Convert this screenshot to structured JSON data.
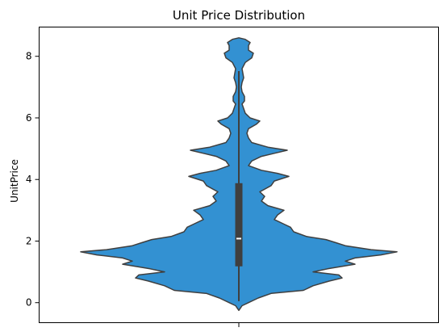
{
  "chart_data": {
    "type": "violin",
    "title": "Unit Price Distribution",
    "xlabel": "",
    "ylabel": "UnitPrice",
    "ylim": [
      -0.65,
      8.95
    ],
    "yticks": [
      0,
      2,
      4,
      6,
      8
    ],
    "grid": false,
    "legend": "none",
    "color": "#3391d2",
    "edge_color": "#3f3f3f",
    "violin": {
      "profile": [
        [
          -0.25,
          0.0
        ],
        [
          -0.1,
          0.02
        ],
        [
          0.0,
          0.06
        ],
        [
          0.15,
          0.12
        ],
        [
          0.3,
          0.2
        ],
        [
          0.4,
          0.4
        ],
        [
          0.55,
          0.46
        ],
        [
          0.7,
          0.56
        ],
        [
          0.8,
          0.64
        ],
        [
          0.9,
          0.62
        ],
        [
          1.0,
          0.46
        ],
        [
          1.1,
          0.55
        ],
        [
          1.25,
          0.72
        ],
        [
          1.35,
          0.66
        ],
        [
          1.45,
          0.72
        ],
        [
          1.55,
          0.88
        ],
        [
          1.65,
          0.98
        ],
        [
          1.72,
          0.82
        ],
        [
          1.85,
          0.66
        ],
        [
          1.95,
          0.6
        ],
        [
          2.05,
          0.54
        ],
        [
          2.15,
          0.42
        ],
        [
          2.3,
          0.34
        ],
        [
          2.45,
          0.32
        ],
        [
          2.55,
          0.28
        ],
        [
          2.7,
          0.22
        ],
        [
          2.85,
          0.24
        ],
        [
          3.0,
          0.28
        ],
        [
          3.15,
          0.18
        ],
        [
          3.3,
          0.14
        ],
        [
          3.45,
          0.16
        ],
        [
          3.6,
          0.13
        ],
        [
          3.8,
          0.2
        ],
        [
          3.95,
          0.22
        ],
        [
          4.1,
          0.31
        ],
        [
          4.2,
          0.24
        ],
        [
          4.3,
          0.14
        ],
        [
          4.45,
          0.06
        ],
        [
          4.6,
          0.08
        ],
        [
          4.75,
          0.14
        ],
        [
          4.85,
          0.22
        ],
        [
          4.95,
          0.3
        ],
        [
          5.05,
          0.18
        ],
        [
          5.2,
          0.08
        ],
        [
          5.35,
          0.06
        ],
        [
          5.5,
          0.05
        ],
        [
          5.65,
          0.06
        ],
        [
          5.8,
          0.11
        ],
        [
          5.9,
          0.13
        ],
        [
          6.0,
          0.07
        ],
        [
          6.15,
          0.04
        ],
        [
          6.3,
          0.03
        ],
        [
          6.45,
          0.02
        ],
        [
          6.55,
          0.035
        ],
        [
          6.7,
          0.035
        ],
        [
          6.85,
          0.02
        ],
        [
          7.0,
          0.015
        ],
        [
          7.15,
          0.02
        ],
        [
          7.3,
          0.03
        ],
        [
          7.45,
          0.025
        ],
        [
          7.6,
          0.02
        ],
        [
          7.8,
          0.04
        ],
        [
          7.95,
          0.08
        ],
        [
          8.1,
          0.09
        ],
        [
          8.2,
          0.06
        ],
        [
          8.35,
          0.06
        ],
        [
          8.45,
          0.07
        ],
        [
          8.55,
          0.04
        ],
        [
          8.6,
          0.0
        ]
      ],
      "box": {
        "q1": 1.18,
        "median": 2.08,
        "q3": 3.88,
        "whisker_low": 0.05,
        "whisker_high": 7.52
      }
    }
  }
}
